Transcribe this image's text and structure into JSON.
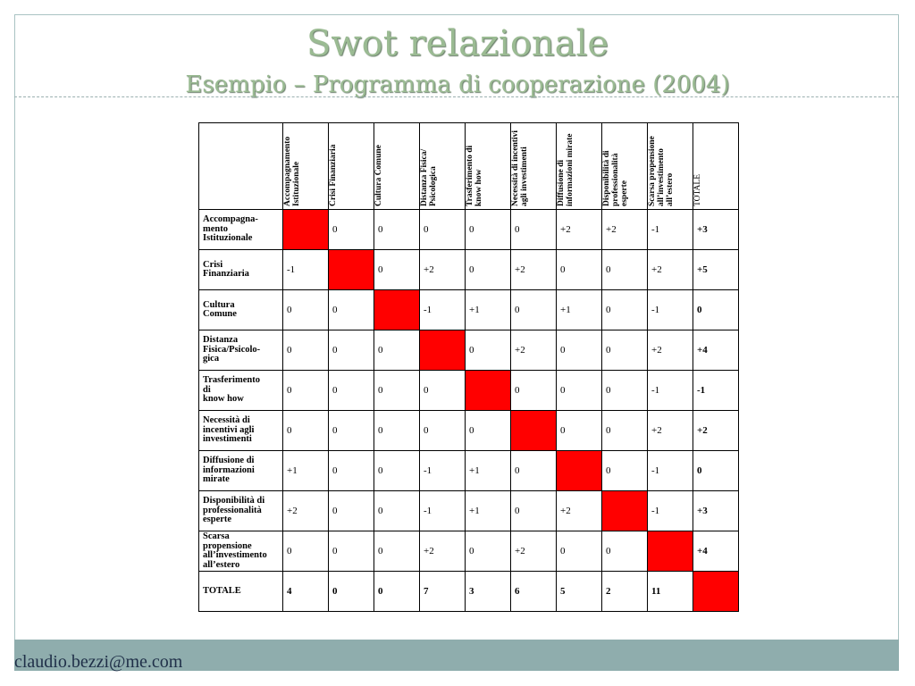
{
  "slide": {
    "title": "Swot relazionale",
    "subtitle": "Esempio – Programma di cooperazione (2004)",
    "footer": "claudio.bezzi@me.com"
  },
  "table": {
    "columns": [
      "Accompagnamento Istituzionale",
      "Crisi Finanziaria",
      "Cultura Comune",
      "Distanza Fisica/ Psicologica",
      "Trasferimento di know how",
      "Necessità di incentivi agli investimenti",
      "Diffusione di informazioni mirate",
      "Disponibilità di professionalità esperte",
      "Scarsa propensione all’investimento all’estero",
      "TOTALE"
    ],
    "rows": [
      {
        "label": "Accompagna-\nmento\nIstituzionale",
        "cells": [
          "",
          "0",
          "0",
          "0",
          "0",
          "0",
          "+2",
          "+2",
          "-1",
          "+3"
        ]
      },
      {
        "label": "Crisi\nFinanziaria",
        "cells": [
          "-1",
          "",
          "0",
          "+2",
          "0",
          "+2",
          "0",
          "0",
          "+2",
          "+5"
        ]
      },
      {
        "label": "Cultura\nComune",
        "cells": [
          "0",
          "0",
          "",
          "-1",
          "+1",
          "0",
          "+1",
          "0",
          "-1",
          "0"
        ]
      },
      {
        "label": "Distanza\nFisica/Psicolo-\ngica",
        "cells": [
          "0",
          "0",
          "0",
          "",
          "0",
          "+2",
          "0",
          "0",
          "+2",
          "+4"
        ]
      },
      {
        "label": "Trasferimento\ndi\nknow how",
        "cells": [
          "0",
          "0",
          "0",
          "0",
          "",
          "0",
          "0",
          "0",
          "-1",
          "-1"
        ]
      },
      {
        "label": "Necessità di\nincentivi agli\ninvestimenti",
        "cells": [
          "0",
          "0",
          "0",
          "0",
          "0",
          "",
          "0",
          "0",
          "+2",
          "+2"
        ]
      },
      {
        "label": "Diffusione di\ninformazioni\nmirate",
        "cells": [
          "+1",
          "0",
          "0",
          "-1",
          "+1",
          "0",
          "",
          "0",
          "-1",
          "0"
        ]
      },
      {
        "label": "Disponibilità di\nprofessionalità\nesperte",
        "cells": [
          "+2",
          "0",
          "0",
          "-1",
          "+1",
          "0",
          "+2",
          "",
          "-1",
          "+3"
        ]
      },
      {
        "label": "Scarsa\npropensione\nall’investimento\nall’estero",
        "cells": [
          "0",
          "0",
          "0",
          "+2",
          "0",
          "+2",
          "0",
          "0",
          "",
          "+4"
        ]
      },
      {
        "label": "TOTALE",
        "cells": [
          "4",
          "0",
          "0",
          "7",
          "3",
          "6",
          "5",
          "2",
          "11",
          ""
        ]
      }
    ],
    "diagonal_color": "#ff0000"
  }
}
